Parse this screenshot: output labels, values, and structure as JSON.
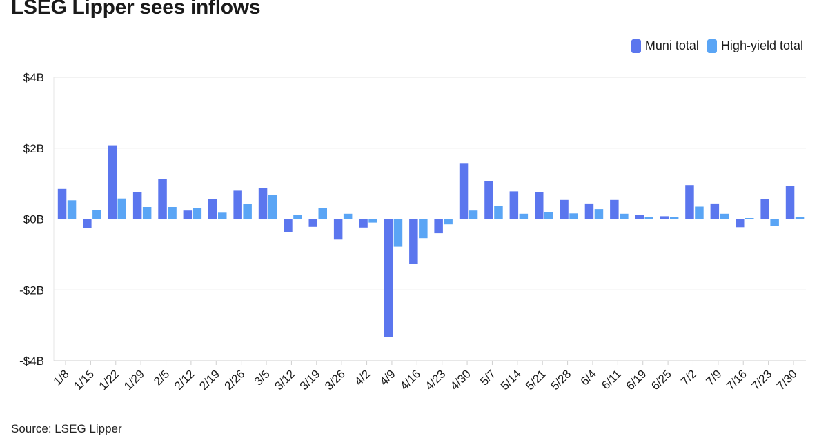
{
  "header": {
    "title": "LSEG Lipper sees inflows"
  },
  "footer": {
    "source": "Source: LSEG Lipper"
  },
  "colors": {
    "muni": "#5b76ee",
    "high_yield": "#5aa5f5",
    "grid": "#e6e6e6",
    "text": "#1a1a1a"
  },
  "chart_data": {
    "type": "bar",
    "title": "LSEG Lipper sees inflows",
    "xlabel": "",
    "ylabel": "",
    "ylim": [
      -4,
      4
    ],
    "yticks": [
      4,
      2,
      0,
      -2,
      -4
    ],
    "ytick_labels": [
      "$4B",
      "$2B",
      "$0B",
      "-$2B",
      "-$4B"
    ],
    "grid": true,
    "legend_position": "top-right",
    "categories": [
      "1/8",
      "1/15",
      "1/22",
      "1/29",
      "2/5",
      "2/12",
      "2/19",
      "2/26",
      "3/5",
      "3/12",
      "3/19",
      "3/26",
      "4/2",
      "4/9",
      "4/16",
      "4/23",
      "4/30",
      "5/7",
      "5/14",
      "5/21",
      "5/28",
      "6/4",
      "6/11",
      "6/19",
      "6/25",
      "7/2",
      "7/9",
      "7/16",
      "7/23",
      "7/30"
    ],
    "series": [
      {
        "name": "Muni total",
        "color": "#5b76ee",
        "values": [
          0.85,
          -0.25,
          2.08,
          0.75,
          1.13,
          0.24,
          0.56,
          0.8,
          0.88,
          -0.38,
          -0.22,
          -0.58,
          -0.24,
          -3.32,
          -1.27,
          -0.4,
          1.58,
          1.06,
          0.78,
          0.75,
          0.54,
          0.44,
          0.54,
          0.11,
          0.08,
          0.96,
          0.44,
          -0.23,
          0.57,
          0.94
        ]
      },
      {
        "name": "High-yield total",
        "color": "#5aa5f5",
        "values": [
          0.53,
          0.25,
          0.58,
          0.34,
          0.34,
          0.32,
          0.18,
          0.43,
          0.69,
          0.12,
          0.32,
          0.15,
          -0.1,
          -0.78,
          -0.54,
          -0.15,
          0.24,
          0.36,
          0.15,
          0.2,
          0.16,
          0.28,
          0.15,
          0.05,
          0.05,
          0.35,
          0.15,
          0.03,
          -0.2,
          0.05
        ]
      }
    ]
  }
}
